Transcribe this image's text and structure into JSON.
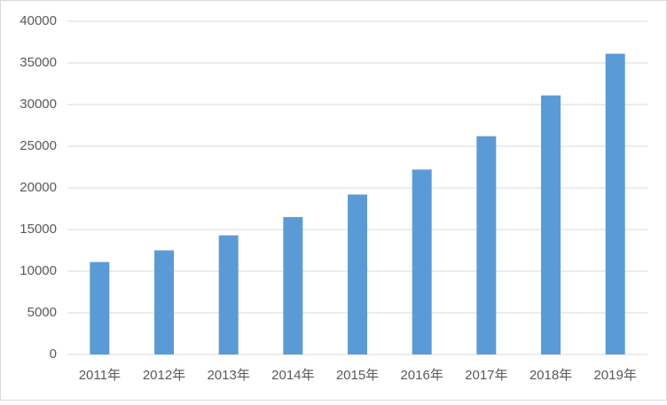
{
  "chart_data": {
    "type": "bar",
    "categories": [
      "2011年",
      "2012年",
      "2013年",
      "2014年",
      "2015年",
      "2016年",
      "2017年",
      "2018年",
      "2019年"
    ],
    "values": [
      11100,
      12500,
      14300,
      16500,
      19200,
      22200,
      26200,
      31100,
      36100
    ],
    "color": "#5b9bd5",
    "ylim": [
      0,
      40000
    ],
    "yticks": [
      0,
      5000,
      10000,
      15000,
      20000,
      25000,
      30000,
      35000,
      40000
    ],
    "grid": true
  }
}
